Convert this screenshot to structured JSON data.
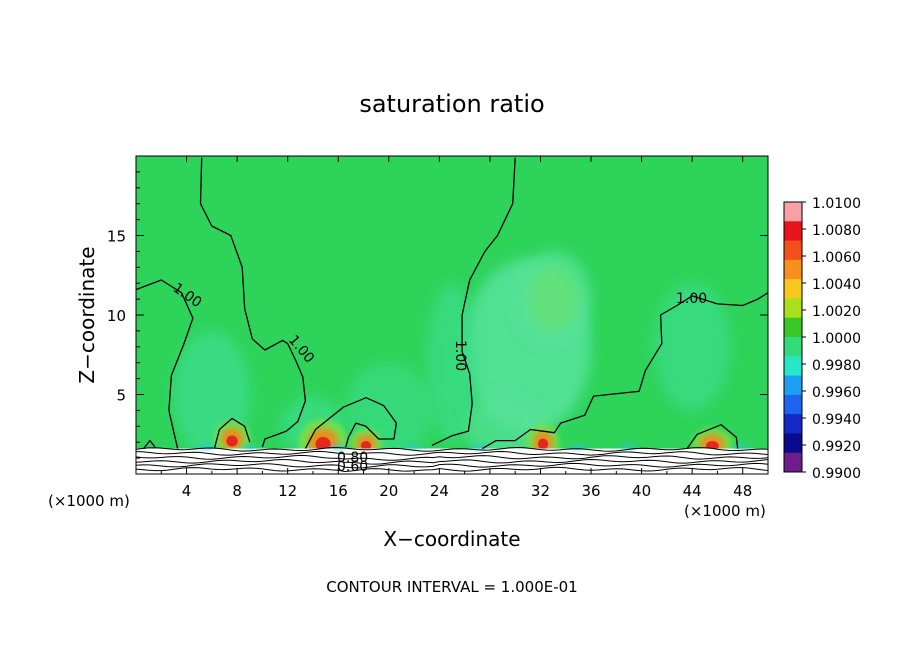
{
  "chart_data": {
    "type": "contour",
    "title": "saturation ratio",
    "xlabel": "X−coordinate",
    "ylabel": "Z−coordinate",
    "x_unit_left": "(×1000 m)",
    "x_unit_right": "(×1000 m)",
    "footer": "CONTOUR INTERVAL = 1.000E-01",
    "xlim": [
      0,
      50
    ],
    "ylim": [
      0,
      20
    ],
    "x_ticks": [
      "4",
      "8",
      "12",
      "16",
      "20",
      "24",
      "28",
      "32",
      "36",
      "40",
      "44",
      "48"
    ],
    "y_ticks": [
      "5",
      "10",
      "15"
    ],
    "contour_labels": [
      "1.00",
      "1.00",
      "1.00",
      "1.00",
      "0.80",
      "0.60"
    ],
    "colorbar": {
      "labels": [
        "1.0100",
        "1.0080",
        "1.0060",
        "1.0040",
        "1.0020",
        "1.0000",
        "0.9980",
        "0.9960",
        "0.9940",
        "0.9920",
        "0.9900"
      ],
      "colors": [
        "#f7a0a8",
        "#e8141c",
        "#f4501e",
        "#f7901e",
        "#f7c81e",
        "#a8e01e",
        "#38c828",
        "#32dc78",
        "#28e6c8",
        "#1ea0f0",
        "#1e64f0",
        "#1428c8",
        "#0a0a8c",
        "#6e1e8c"
      ]
    },
    "field_colors": {
      "base": "#2ed35a",
      "sub": "#3ade8c",
      "moist": "#56e29a",
      "warm": "#7ae04a",
      "hot": "#f08a1e",
      "core": "#e8141c",
      "ground": "#ffffff",
      "low": "#28c8e6"
    }
  }
}
